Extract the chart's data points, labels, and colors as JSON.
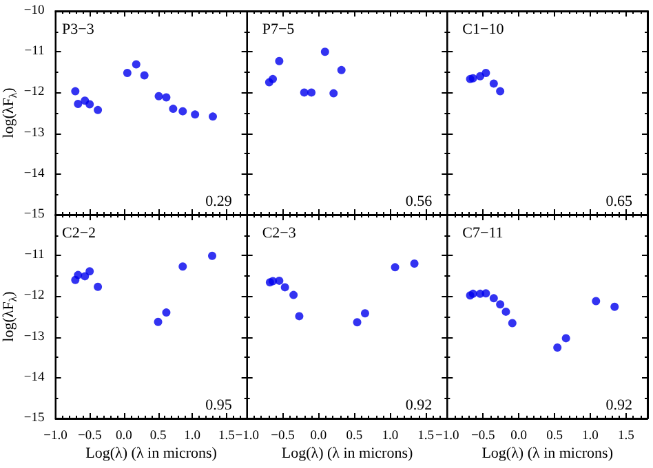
{
  "chart_data": [
    {
      "type": "scatter",
      "title": "P3−3",
      "ylabel": "log(λF$_{λ}$)",
      "annotations": [
        "0.29"
      ],
      "x": [
        -0.71,
        -0.67,
        -0.57,
        -0.5,
        -0.38,
        0.05,
        0.18,
        0.3,
        0.51,
        0.62,
        0.72,
        0.86,
        1.04,
        1.3
      ],
      "series": [
        {
          "color": "#0000ee",
          "values": [
            -11.97,
            -12.28,
            -12.2,
            -12.29,
            -12.43,
            -11.52,
            -11.31,
            -11.58,
            -12.09,
            -12.12,
            -12.4,
            -12.46,
            -12.54,
            -12.59
          ]
        }
      ],
      "xlim": [
        -1,
        1.8
      ],
      "ylim": [
        -15,
        -10
      ],
      "xticks": [
        -1,
        -0.5,
        0,
        0.5,
        1,
        1.5
      ],
      "yticks": [
        -15,
        -14,
        -13,
        -12,
        -11,
        -10
      ],
      "tick_labels": "y",
      "marker": "circle",
      "grid": false
    },
    {
      "type": "scatter",
      "title": "P7−5",
      "annotations": [
        "0.56"
      ],
      "x": [
        -0.69,
        -0.64,
        -0.55,
        -0.2,
        -0.1,
        0.09,
        0.21,
        0.32
      ],
      "series": [
        {
          "color": "#0000ee",
          "values": [
            -11.75,
            -11.67,
            -11.23,
            -12.0,
            -12.0,
            -11.0,
            -12.02,
            -11.45
          ]
        }
      ],
      "xlim": [
        -1,
        1.8
      ],
      "ylim": [
        -15,
        -10
      ],
      "xticks": [
        -1,
        -0.5,
        0,
        0.5,
        1,
        1.5
      ],
      "yticks": [
        -15,
        -14,
        -13,
        -12,
        -11,
        -10
      ],
      "tick_labels": false,
      "marker": "circle",
      "grid": false
    },
    {
      "type": "scatter",
      "title": "C1−10",
      "annotations": [
        "0.65"
      ],
      "x": [
        -0.68,
        -0.64,
        -0.54,
        -0.46,
        -0.35,
        -0.26
      ],
      "series": [
        {
          "color": "#0000ee",
          "values": [
            -11.67,
            -11.65,
            -11.6,
            -11.52,
            -11.78,
            -11.97
          ]
        }
      ],
      "xlim": [
        -1,
        1.8
      ],
      "ylim": [
        -15,
        -10
      ],
      "xticks": [
        -1,
        -0.5,
        0,
        0.5,
        1,
        1.5
      ],
      "yticks": [
        -15,
        -14,
        -13,
        -12,
        -11,
        -10
      ],
      "tick_labels": false,
      "marker": "circle",
      "grid": false
    },
    {
      "type": "scatter",
      "title": "C2−2",
      "xlabel": "Log(λ) (λ in microns)",
      "ylabel": "log(λF$_{λ}$)",
      "annotations": [
        "0.95"
      ],
      "x": [
        -0.71,
        -0.67,
        -0.57,
        -0.5,
        -0.38,
        0.5,
        0.62,
        0.86,
        1.29
      ],
      "series": [
        {
          "color": "#0000ee",
          "values": [
            -11.6,
            -11.48,
            -11.51,
            -11.39,
            -11.77,
            -12.63,
            -12.4,
            -11.27,
            -11.01
          ]
        }
      ],
      "xlim": [
        -1,
        1.8
      ],
      "ylim": [
        -15,
        -10
      ],
      "xticks": [
        {
          "value": -1,
          "label": "−1.0"
        },
        -0.5,
        {
          "value": 0,
          "label": "0.0"
        },
        0.5,
        {
          "value": 1,
          "label": "1.0"
        },
        1.5
      ],
      "yticks": [
        -15,
        -14,
        -13,
        -12,
        -11,
        {
          "value": -10,
          "label": null
        }
      ],
      "marker": "circle",
      "grid": false
    },
    {
      "type": "scatter",
      "title": "C2−3",
      "xlabel": "Log(λ) (λ in microns)",
      "annotations": [
        "0.92"
      ],
      "x": [
        -0.68,
        -0.64,
        -0.55,
        -0.47,
        -0.35,
        -0.27,
        0.54,
        0.65,
        1.07,
        1.34
      ],
      "series": [
        {
          "color": "#0000ee",
          "values": [
            -11.66,
            -11.63,
            -11.62,
            -11.78,
            -11.97,
            -12.49,
            -12.64,
            -12.42,
            -11.29,
            -11.2
          ]
        }
      ],
      "xlim": [
        -1,
        1.8
      ],
      "ylim": [
        -15,
        -10
      ],
      "xticks": [
        {
          "value": -1,
          "label": "−1.0"
        },
        -0.5,
        {
          "value": 0,
          "label": "0.0"
        },
        0.5,
        {
          "value": 1,
          "label": "1.0"
        },
        1.5
      ],
      "yticks": [
        -15,
        -14,
        -13,
        -12,
        -11,
        -10
      ],
      "tick_labels": "x",
      "marker": "circle",
      "grid": false
    },
    {
      "type": "scatter",
      "title": "C7−11",
      "xlabel": "Log(λ) (λ in microns)",
      "annotations": [
        "0.92"
      ],
      "x": [
        -0.68,
        -0.64,
        -0.54,
        -0.46,
        -0.35,
        -0.26,
        -0.18,
        -0.09,
        0.54,
        0.66,
        1.08,
        1.34
      ],
      "series": [
        {
          "color": "#0000ee",
          "values": [
            -11.98,
            -11.94,
            -11.94,
            -11.93,
            -12.05,
            -12.2,
            -12.38,
            -12.66,
            -13.26,
            -13.03,
            -12.12,
            -12.26
          ]
        }
      ],
      "xlim": [
        -1,
        1.8
      ],
      "ylim": [
        -15,
        -10
      ],
      "xticks": [
        {
          "value": -1,
          "label": "−1.0"
        },
        -0.5,
        {
          "value": 0,
          "label": "0.0"
        },
        0.5,
        {
          "value": 1,
          "label": "1.0"
        },
        1.5
      ],
      "yticks": [
        -15,
        -14,
        -13,
        -12,
        -11,
        -10
      ],
      "tick_labels": "x",
      "marker": "circle",
      "grid": false
    }
  ]
}
